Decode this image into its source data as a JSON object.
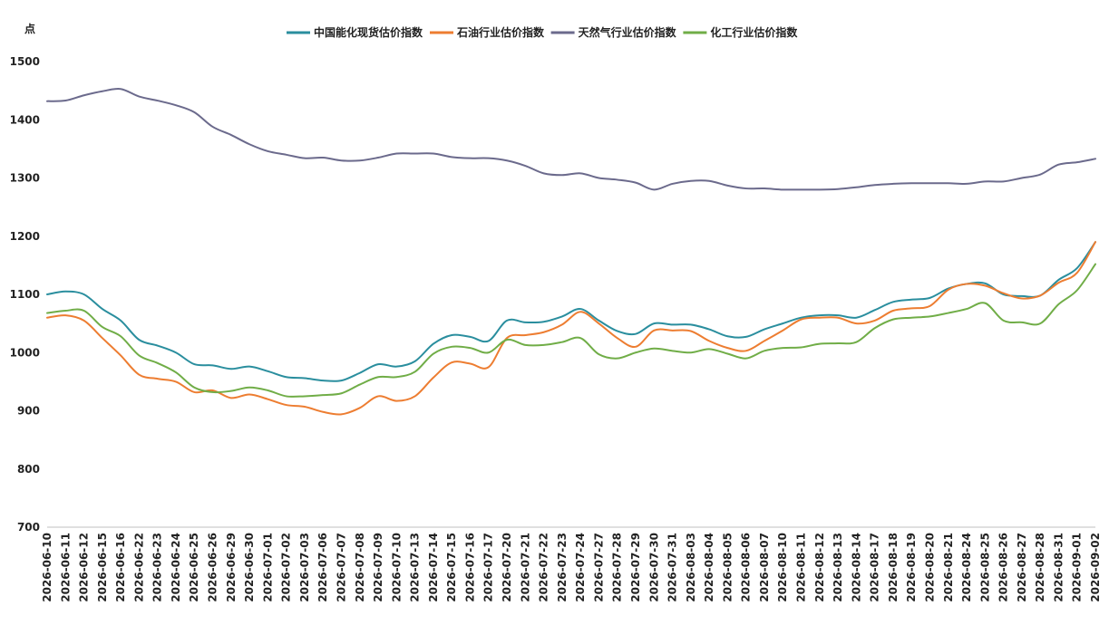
{
  "chart_data": {
    "type": "line",
    "title": "",
    "xlabel": "",
    "ylabel": "点",
    "ylim": [
      700,
      1500
    ],
    "yticks": [
      700,
      800,
      900,
      1000,
      1100,
      1200,
      1300,
      1400,
      1500
    ],
    "grid": false,
    "legend_position": "top-center",
    "x": [
      "2026-06-10",
      "2026-06-11",
      "2026-06-12",
      "2026-06-15",
      "2026-06-16",
      "2026-06-22",
      "2026-06-23",
      "2026-06-24",
      "2026-06-25",
      "2026-06-26",
      "2026-06-29",
      "2026-06-30",
      "2026-07-01",
      "2026-07-02",
      "2026-07-03",
      "2026-07-06",
      "2026-07-07",
      "2026-07-08",
      "2026-07-09",
      "2026-07-10",
      "2026-07-13",
      "2026-07-14",
      "2026-07-15",
      "2026-07-16",
      "2026-07-17",
      "2026-07-20",
      "2026-07-21",
      "2026-07-22",
      "2026-07-23",
      "2026-07-24",
      "2026-07-27",
      "2026-07-28",
      "2026-07-29",
      "2026-07-30",
      "2026-07-31",
      "2026-08-03",
      "2026-08-04",
      "2026-08-05",
      "2026-08-06",
      "2026-08-07",
      "2026-08-10",
      "2026-08-11",
      "2026-08-12",
      "2026-08-13",
      "2026-08-14",
      "2026-08-17",
      "2026-08-18",
      "2026-08-19",
      "2026-08-20",
      "2026-08-21",
      "2026-08-24",
      "2026-08-25",
      "2026-08-26",
      "2026-08-27",
      "2026-08-28",
      "2026-08-31",
      "2026-09-01",
      "2026-09-02"
    ],
    "series": [
      {
        "name": "中国能化现货估价指数",
        "color": "#2a8e9e",
        "values": [
          1100,
          1105,
          1100,
          1075,
          1055,
          1022,
          1012,
          1000,
          980,
          978,
          972,
          976,
          968,
          958,
          956,
          952,
          952,
          965,
          980,
          976,
          985,
          1015,
          1030,
          1027,
          1020,
          1055,
          1052,
          1053,
          1062,
          1075,
          1055,
          1037,
          1032,
          1050,
          1048,
          1048,
          1040,
          1028,
          1027,
          1040,
          1050,
          1060,
          1064,
          1064,
          1060,
          1073,
          1087,
          1091,
          1094,
          1110,
          1118,
          1119,
          1100,
          1097,
          1098,
          1125,
          1145,
          1190
        ]
      },
      {
        "name": "石油行业估价指数",
        "color": "#ed7d31",
        "values": [
          1060,
          1064,
          1055,
          1025,
          995,
          962,
          955,
          950,
          932,
          935,
          922,
          928,
          920,
          910,
          907,
          898,
          894,
          905,
          925,
          917,
          925,
          957,
          983,
          981,
          975,
          1025,
          1030,
          1035,
          1048,
          1070,
          1050,
          1025,
          1010,
          1038,
          1038,
          1037,
          1020,
          1008,
          1003,
          1020,
          1038,
          1057,
          1060,
          1060,
          1050,
          1055,
          1072,
          1076,
          1080,
          1108,
          1118,
          1115,
          1102,
          1093,
          1098,
          1120,
          1137,
          1190
        ]
      },
      {
        "name": "天然气行业估价指数",
        "color": "#6b6a8c",
        "values": [
          1432,
          1433,
          1442,
          1449,
          1453,
          1440,
          1433,
          1425,
          1413,
          1388,
          1374,
          1358,
          1346,
          1340,
          1334,
          1335,
          1330,
          1330,
          1335,
          1342,
          1342,
          1342,
          1336,
          1334,
          1334,
          1330,
          1321,
          1308,
          1305,
          1308,
          1300,
          1297,
          1292,
          1280,
          1290,
          1295,
          1295,
          1287,
          1282,
          1282,
          1280,
          1280,
          1280,
          1281,
          1284,
          1288,
          1290,
          1291,
          1291,
          1291,
          1290,
          1294,
          1294,
          1300,
          1306,
          1323,
          1327,
          1333
        ]
      },
      {
        "name": "化工行业估价指数",
        "color": "#70ad47",
        "values": [
          1068,
          1072,
          1072,
          1044,
          1028,
          995,
          982,
          966,
          940,
          932,
          934,
          940,
          935,
          925,
          925,
          927,
          930,
          945,
          958,
          958,
          967,
          998,
          1010,
          1008,
          1000,
          1022,
          1013,
          1013,
          1018,
          1025,
          997,
          990,
          1000,
          1007,
          1003,
          1000,
          1006,
          998,
          990,
          1003,
          1008,
          1009,
          1015,
          1016,
          1018,
          1042,
          1057,
          1060,
          1062,
          1068,
          1075,
          1085,
          1055,
          1052,
          1050,
          1083,
          1107,
          1152
        ]
      }
    ]
  }
}
